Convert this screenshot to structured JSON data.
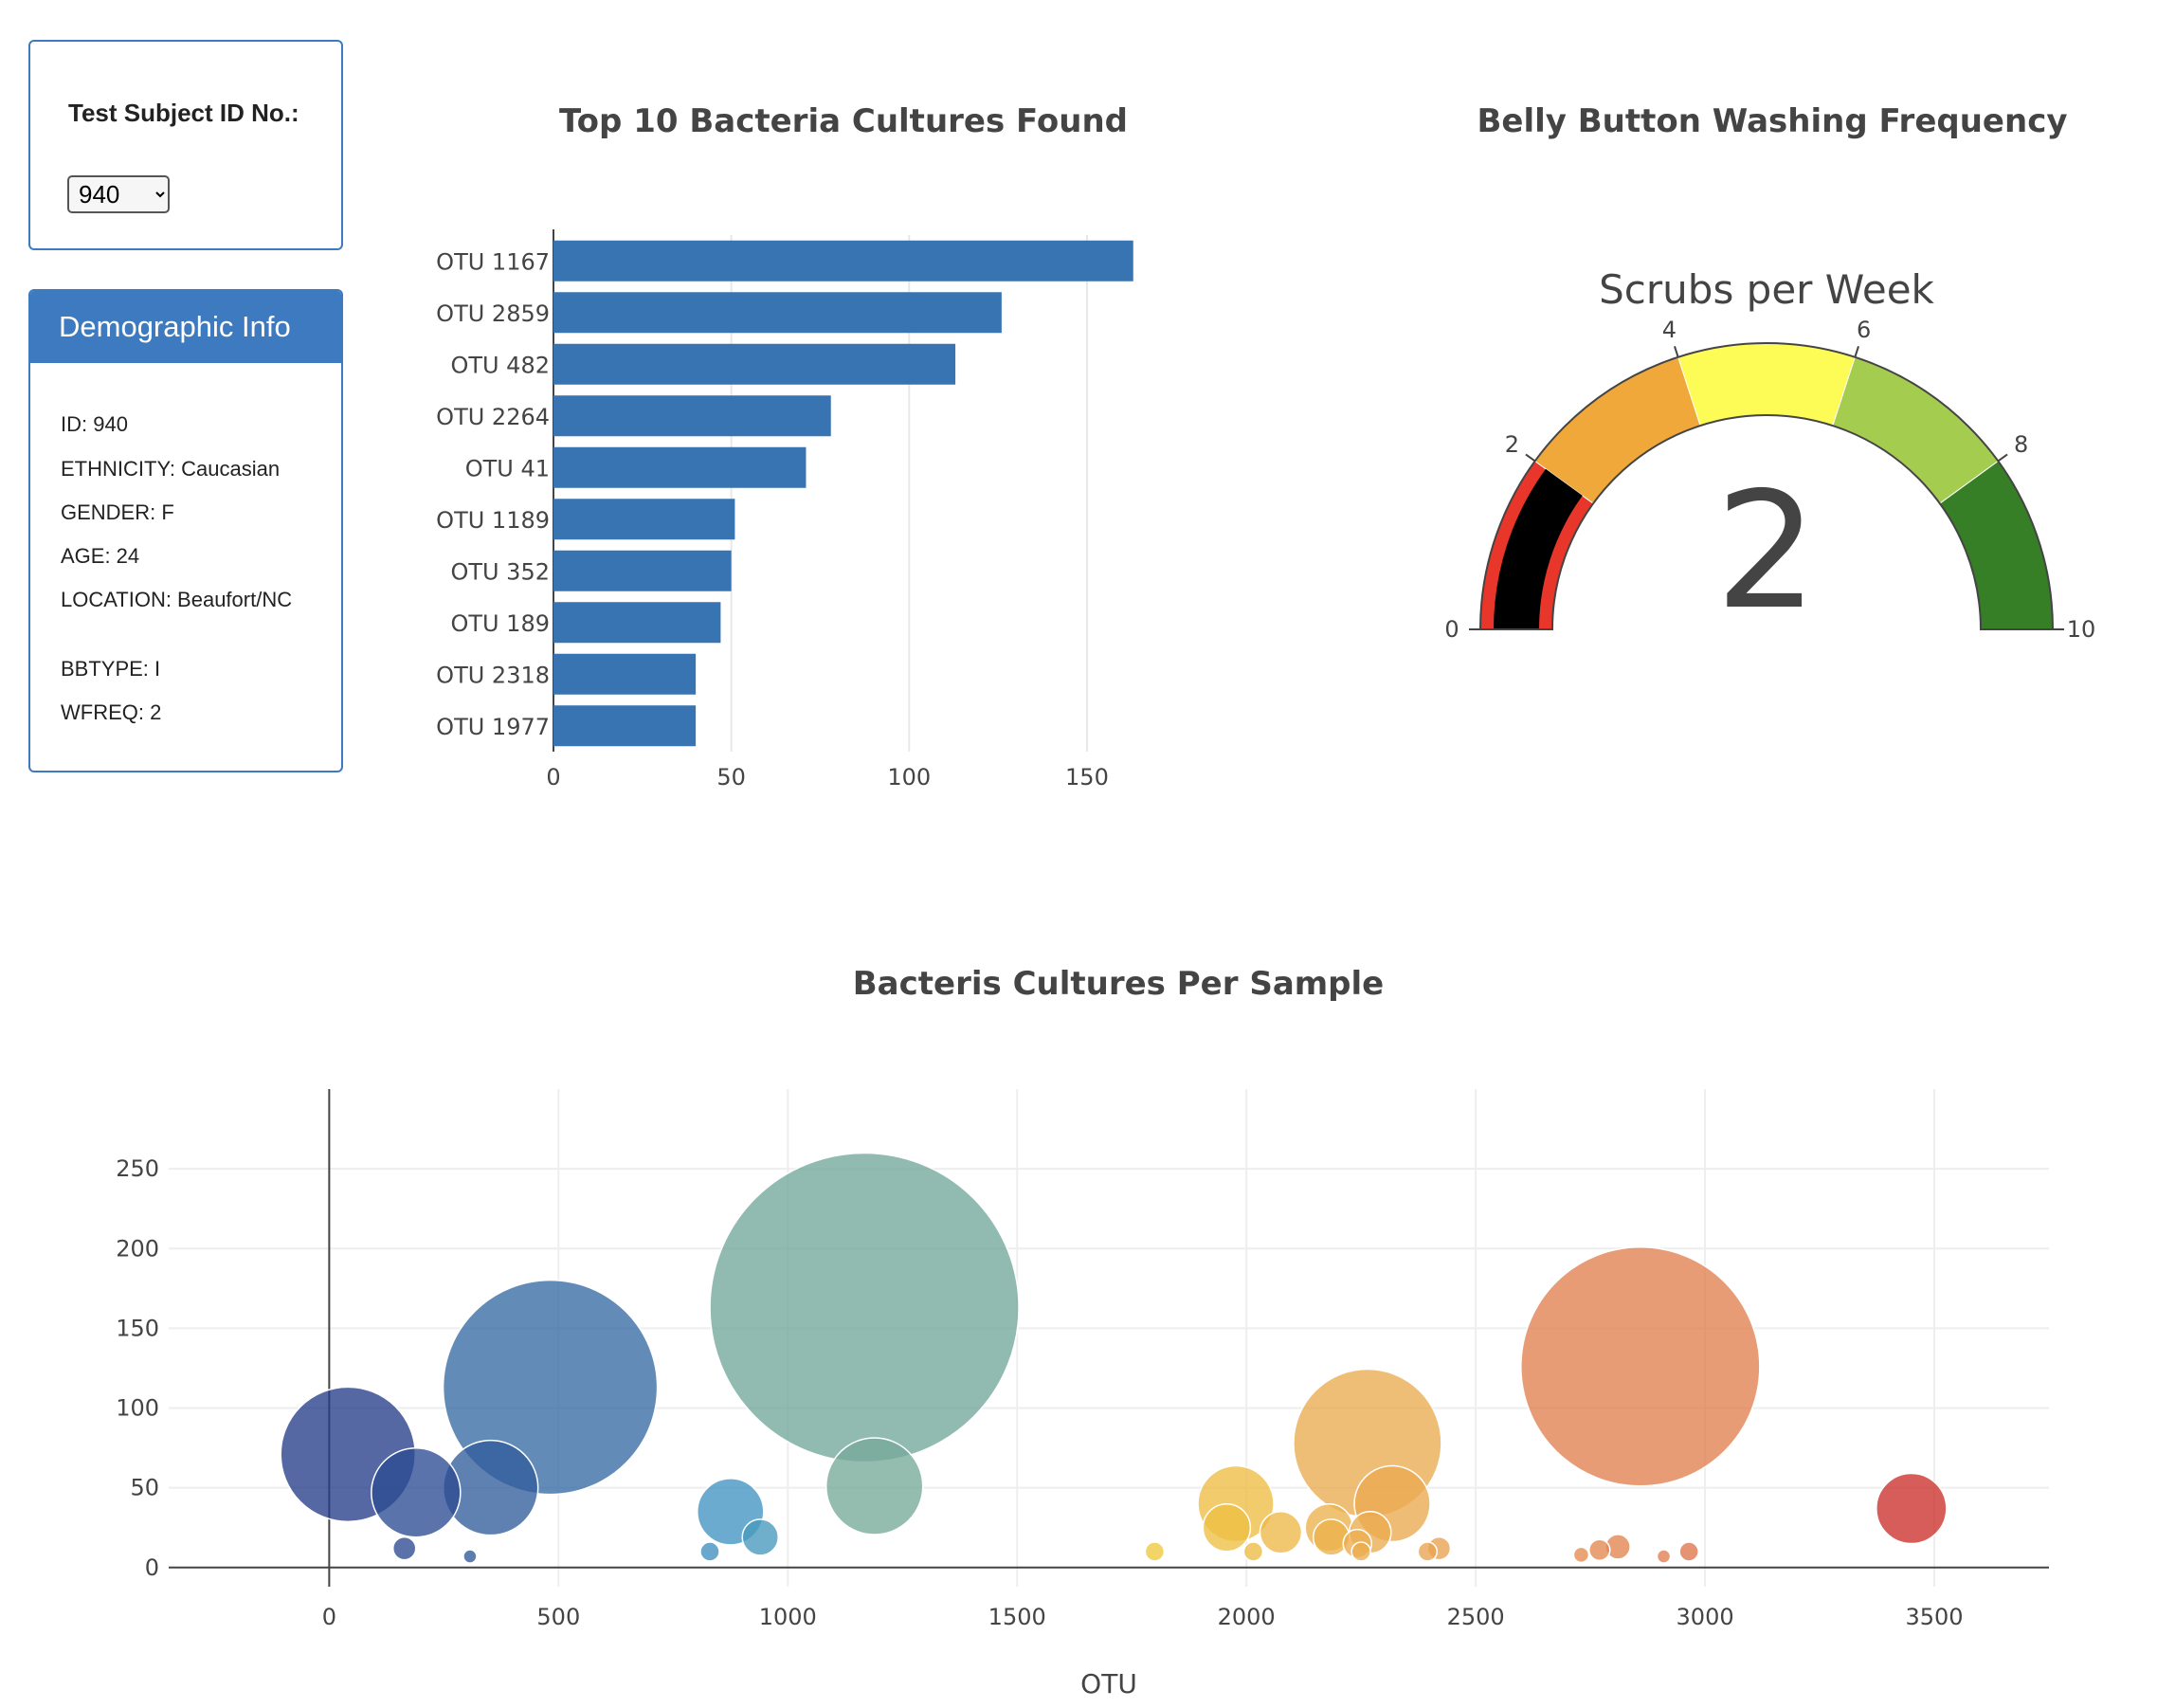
{
  "selector": {
    "label": "Test Subject ID No.:",
    "value": "940",
    "options": [
      "940"
    ]
  },
  "demographics": {
    "title": "Demographic Info",
    "rows": [
      "ID: 940",
      "ETHNICITY: Caucasian",
      "GENDER: F",
      "AGE: 24",
      "LOCATION: Beaufort/NC",
      "BBTYPE: I",
      "WFREQ: 2"
    ]
  },
  "chart_data": [
    {
      "type": "bar",
      "orientation": "horizontal",
      "title": "Top 10 Bacteria Cultures Found",
      "categories": [
        "OTU 1167",
        "OTU 2859",
        "OTU 482",
        "OTU 2264",
        "OTU 41",
        "OTU 1189",
        "OTU 352",
        "OTU 189",
        "OTU 2318",
        "OTU 1977"
      ],
      "values": [
        163,
        126,
        113,
        78,
        71,
        51,
        50,
        47,
        40,
        40
      ],
      "xlim": [
        0,
        170
      ],
      "xticks": [
        0,
        50,
        100,
        150
      ],
      "color": "#3874b1"
    },
    {
      "type": "gauge",
      "title": "Belly Button Washing Frequency",
      "subtitle": "Scrubs per Week",
      "value": 2,
      "display_value": "2",
      "range": [
        0,
        10
      ],
      "ticks": [
        0,
        2,
        4,
        6,
        8,
        10
      ],
      "steps": [
        {
          "range": [
            0,
            2
          ],
          "color": "#e8362a"
        },
        {
          "range": [
            2,
            4
          ],
          "color": "#f0a83a"
        },
        {
          "range": [
            4,
            6
          ],
          "color": "#fdfc57"
        },
        {
          "range": [
            6,
            8
          ],
          "color": "#a4cc4e"
        },
        {
          "range": [
            8,
            10
          ],
          "color": "#367f27"
        }
      ],
      "bar_color": "#000000"
    },
    {
      "type": "scatter",
      "subtype": "bubble",
      "title": "Bacteris Cultures Per Sample",
      "xlabel": "OTU",
      "ylabel": "",
      "xlim": [
        -350,
        3750
      ],
      "ylim": [
        -12,
        300
      ],
      "xticks": [
        0,
        500,
        1000,
        1500,
        2000,
        2500,
        3000,
        3500
      ],
      "yticks": [
        0,
        50,
        100,
        150,
        200,
        250
      ],
      "grid": true,
      "points": [
        {
          "x": 41,
          "y": 71
        },
        {
          "x": 189,
          "y": 47
        },
        {
          "x": 352,
          "y": 50
        },
        {
          "x": 482,
          "y": 113
        },
        {
          "x": 164,
          "y": 12
        },
        {
          "x": 307,
          "y": 7
        },
        {
          "x": 830,
          "y": 10
        },
        {
          "x": 875,
          "y": 35
        },
        {
          "x": 940,
          "y": 19
        },
        {
          "x": 1167,
          "y": 163
        },
        {
          "x": 1189,
          "y": 51
        },
        {
          "x": 1800,
          "y": 10
        },
        {
          "x": 1977,
          "y": 40
        },
        {
          "x": 1957,
          "y": 25
        },
        {
          "x": 2075,
          "y": 22
        },
        {
          "x": 2015,
          "y": 10
        },
        {
          "x": 2264,
          "y": 78
        },
        {
          "x": 2318,
          "y": 40
        },
        {
          "x": 2180,
          "y": 25
        },
        {
          "x": 2185,
          "y": 19
        },
        {
          "x": 2270,
          "y": 22
        },
        {
          "x": 2242,
          "y": 15
        },
        {
          "x": 2250,
          "y": 10
        },
        {
          "x": 2395,
          "y": 10
        },
        {
          "x": 2420,
          "y": 12
        },
        {
          "x": 2859,
          "y": 126
        },
        {
          "x": 2730,
          "y": 8
        },
        {
          "x": 2770,
          "y": 11
        },
        {
          "x": 2810,
          "y": 13
        },
        {
          "x": 2910,
          "y": 7
        },
        {
          "x": 2965,
          "y": 10
        },
        {
          "x": 3450,
          "y": 37
        }
      ]
    }
  ]
}
